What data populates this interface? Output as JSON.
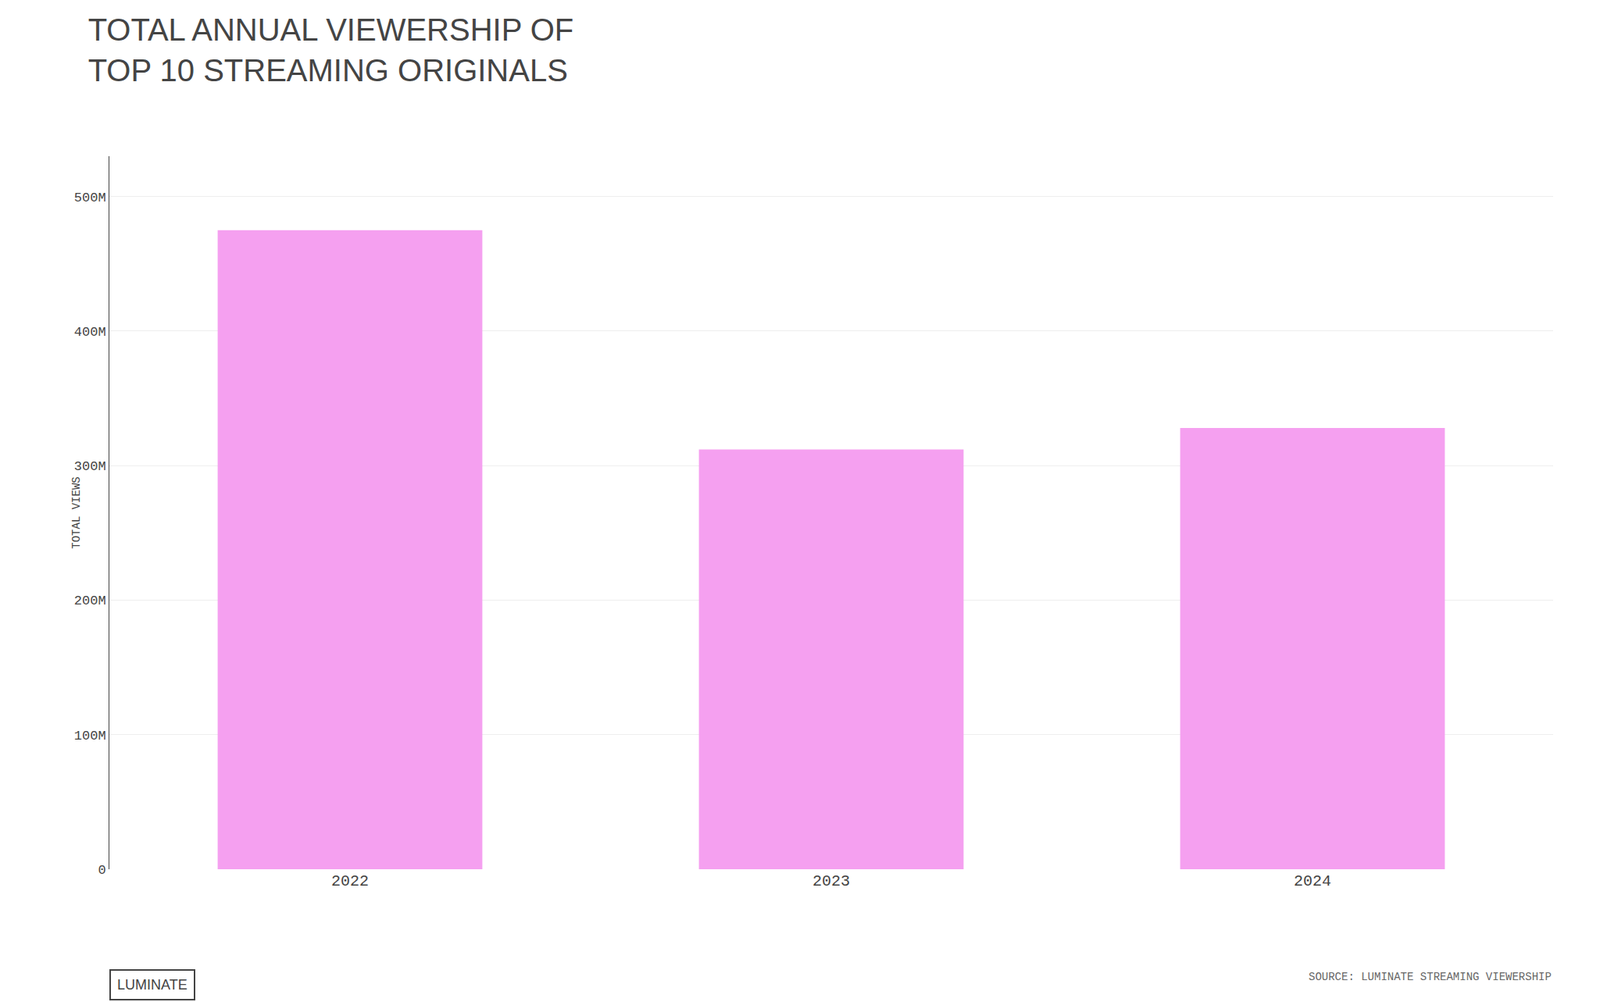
{
  "chart_data": {
    "type": "bar",
    "title": "TOTAL ANNUAL VIEWERSHIP OF\nTOP 10 STREAMING ORIGINALS",
    "categories": [
      "2022",
      "2023",
      "2024"
    ],
    "values": [
      475000000,
      312000000,
      328000000
    ],
    "color": "#f5a0f0",
    "ylabel": "TOTAL VIEWS",
    "ylim": [
      0,
      530000000
    ],
    "yticks": [
      0,
      {
        "value": 100000000,
        "label": "100M"
      },
      {
        "value": 200000000,
        "label": "200M"
      },
      {
        "value": 300000000,
        "label": "300M"
      },
      {
        "value": 400000000,
        "label": "400M"
      },
      {
        "value": 500000000,
        "label": "500M"
      }
    ],
    "grid": true,
    "annotations": [
      "LUMINATE",
      "SOURCE: LUMINATE STREAMING VIEWERSHIP"
    ]
  }
}
